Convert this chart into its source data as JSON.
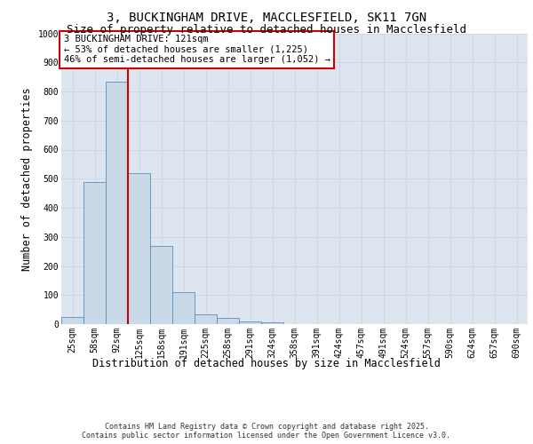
{
  "title_line1": "3, BUCKINGHAM DRIVE, MACCLESFIELD, SK11 7GN",
  "title_line2": "Size of property relative to detached houses in Macclesfield",
  "xlabel": "Distribution of detached houses by size in Macclesfield",
  "ylabel": "Number of detached properties",
  "categories": [
    "25sqm",
    "58sqm",
    "92sqm",
    "125sqm",
    "158sqm",
    "191sqm",
    "225sqm",
    "258sqm",
    "291sqm",
    "324sqm",
    "358sqm",
    "391sqm",
    "424sqm",
    "457sqm",
    "491sqm",
    "524sqm",
    "557sqm",
    "590sqm",
    "624sqm",
    "657sqm",
    "690sqm"
  ],
  "values": [
    25,
    490,
    835,
    520,
    270,
    110,
    35,
    20,
    10,
    5,
    0,
    0,
    0,
    0,
    0,
    0,
    0,
    0,
    0,
    0,
    0
  ],
  "bar_color": "#c9d9e8",
  "bar_edge_color": "#5b8db8",
  "grid_color": "#d0d8e0",
  "background_color": "#dde6f0",
  "vline_color": "#cc0000",
  "annotation_text": "3 BUCKINGHAM DRIVE: 121sqm\n← 53% of detached houses are smaller (1,225)\n46% of semi-detached houses are larger (1,052) →",
  "annotation_box_color": "#ffffff",
  "annotation_box_edge": "#cc0000",
  "ylim": [
    0,
    1000
  ],
  "yticks": [
    0,
    100,
    200,
    300,
    400,
    500,
    600,
    700,
    800,
    900,
    1000
  ],
  "footer_text": "Contains HM Land Registry data © Crown copyright and database right 2025.\nContains public sector information licensed under the Open Government Licence v3.0.",
  "title_fontsize": 10,
  "subtitle_fontsize": 9,
  "axis_label_fontsize": 8.5,
  "tick_fontsize": 7,
  "annotation_fontsize": 7.5,
  "footer_fontsize": 6
}
